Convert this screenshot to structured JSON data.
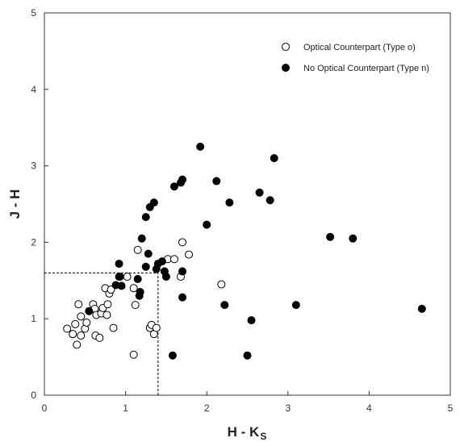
{
  "chart_data": {
    "type": "scatter",
    "xlabel": "H - K",
    "xlabel_subscript": "S",
    "ylabel": "J - H",
    "xlim": [
      0,
      5
    ],
    "ylim": [
      0,
      5
    ],
    "xticks": [
      "0",
      "1",
      "2",
      "3",
      "4",
      "5"
    ],
    "yticks": [
      "0",
      "1",
      "2",
      "3",
      "4",
      "5"
    ],
    "grid": false,
    "legend_position": "top-right",
    "reference_lines": [
      {
        "orientation": "horizontal",
        "y": 1.6,
        "x_from": 0,
        "x_to": 1.4,
        "style": "dashed"
      },
      {
        "orientation": "vertical",
        "x": 1.4,
        "y_from": 0,
        "y_to": 1.6,
        "style": "dashed"
      }
    ],
    "series": [
      {
        "name": "Optical Counterpart (Type o)",
        "marker": "open-circle",
        "color": "#000000",
        "points": [
          [
            0.28,
            0.87
          ],
          [
            0.35,
            0.8
          ],
          [
            0.38,
            0.93
          ],
          [
            0.4,
            0.66
          ],
          [
            0.42,
            1.19
          ],
          [
            0.45,
            1.03
          ],
          [
            0.45,
            0.78
          ],
          [
            0.5,
            0.87
          ],
          [
            0.52,
            0.95
          ],
          [
            0.6,
            1.19
          ],
          [
            0.62,
            1.13
          ],
          [
            0.63,
            0.78
          ],
          [
            0.64,
            1.05
          ],
          [
            0.68,
            0.75
          ],
          [
            0.7,
            1.07
          ],
          [
            0.72,
            1.14
          ],
          [
            0.75,
            1.4
          ],
          [
            0.77,
            1.05
          ],
          [
            0.78,
            1.19
          ],
          [
            0.8,
            1.33
          ],
          [
            0.82,
            1.38
          ],
          [
            0.85,
            0.88
          ],
          [
            0.92,
            1.55
          ],
          [
            1.02,
            1.55
          ],
          [
            1.1,
            1.4
          ],
          [
            1.1,
            0.53
          ],
          [
            1.12,
            1.18
          ],
          [
            1.15,
            1.9
          ],
          [
            1.3,
            0.88
          ],
          [
            1.32,
            0.92
          ],
          [
            1.35,
            0.8
          ],
          [
            1.38,
            0.88
          ],
          [
            1.52,
            1.78
          ],
          [
            1.6,
            1.78
          ],
          [
            1.68,
            1.55
          ],
          [
            1.7,
            2.0
          ],
          [
            1.78,
            1.84
          ],
          [
            2.18,
            1.45
          ]
        ]
      },
      {
        "name": "No Optical Counterpart (Type n)",
        "marker": "filled-circle",
        "color": "#000000",
        "points": [
          [
            0.55,
            1.1
          ],
          [
            0.88,
            1.44
          ],
          [
            0.92,
            1.72
          ],
          [
            0.93,
            1.55
          ],
          [
            0.95,
            1.43
          ],
          [
            1.15,
            1.52
          ],
          [
            1.17,
            1.3
          ],
          [
            1.18,
            1.35
          ],
          [
            1.2,
            2.05
          ],
          [
            1.25,
            2.33
          ],
          [
            1.25,
            1.68
          ],
          [
            1.28,
            1.85
          ],
          [
            1.3,
            2.46
          ],
          [
            1.35,
            2.52
          ],
          [
            1.38,
            1.65
          ],
          [
            1.4,
            1.72
          ],
          [
            1.45,
            1.75
          ],
          [
            1.48,
            1.62
          ],
          [
            1.5,
            1.55
          ],
          [
            1.58,
            0.52
          ],
          [
            1.6,
            2.73
          ],
          [
            1.68,
            2.78
          ],
          [
            1.7,
            2.82
          ],
          [
            1.7,
            1.62
          ],
          [
            1.7,
            1.28
          ],
          [
            1.92,
            3.25
          ],
          [
            2.0,
            2.23
          ],
          [
            2.12,
            2.8
          ],
          [
            2.22,
            1.18
          ],
          [
            2.28,
            2.52
          ],
          [
            2.5,
            0.52
          ],
          [
            2.55,
            0.98
          ],
          [
            2.65,
            2.65
          ],
          [
            2.78,
            2.55
          ],
          [
            2.83,
            3.1
          ],
          [
            3.1,
            1.18
          ],
          [
            3.52,
            2.07
          ],
          [
            3.8,
            2.05
          ],
          [
            4.65,
            1.13
          ]
        ]
      }
    ]
  }
}
